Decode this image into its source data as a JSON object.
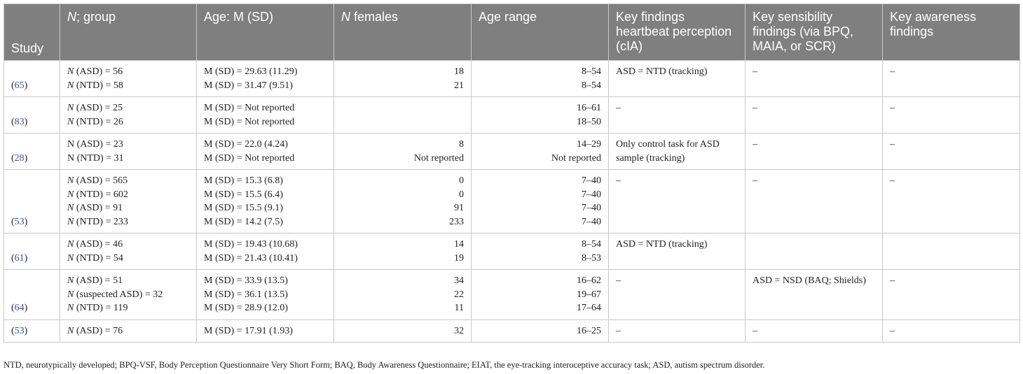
{
  "headers": {
    "study": "Study",
    "n_group": "; group",
    "n_group_italic": "N",
    "age_msd": "Age: M (SD)",
    "n_females": " females",
    "n_females_italic": "N",
    "age_range": "Age range",
    "key_heartbeat": "Key findings heartbeat perception (cIA)",
    "key_sensibility": "Key sensibility findings (via BPQ, MAIA, or SCR)",
    "key_awareness": "Key awareness findings"
  },
  "rows": [
    {
      "study": "65",
      "groups": [
        {
          "n_prefix": "N",
          "n_text": " (ASD) = 56",
          "age": "M (SD) = 29.63 (11.29)",
          "females": "18",
          "range": "8–54"
        },
        {
          "n_prefix": "N",
          "n_text": " (NTD) = 58",
          "age": "M (SD) = 31.47 (9.51)",
          "females": "21",
          "range": "8–54"
        }
      ],
      "heartbeat": "ASD = NTD (tracking)",
      "sensibility": "–",
      "awareness": "–"
    },
    {
      "study": "83",
      "groups": [
        {
          "n_prefix": "N",
          "n_text": " (ASD) = 25",
          "age": "M (SD) = Not reported",
          "females": "",
          "range": "16–61"
        },
        {
          "n_prefix": "N",
          "n_text": " (NTD) = 26",
          "age": "M (SD) = Not reported",
          "females": "",
          "range": "18–50"
        }
      ],
      "heartbeat": "–",
      "sensibility": "–",
      "awareness": "–"
    },
    {
      "study": "28",
      "groups": [
        {
          "n_prefix": "",
          "n_text": "N (ASD) = 23",
          "age": "M (SD) = 22.0 (4.24)",
          "females": "8",
          "range": "14–29"
        },
        {
          "n_prefix": "",
          "n_text": "N (NTD) = 31",
          "age": "M (SD) = Not reported",
          "females": "Not reported",
          "range": "Not reported"
        }
      ],
      "heartbeat": "Only control task for ASD sample (tracking)",
      "sensibility": "–",
      "awareness": "–"
    },
    {
      "study": "53",
      "groups": [
        {
          "n_prefix": "N",
          "n_text": " (ASD) = 565",
          "age": "M (SD) = 15.3 (6.8)",
          "females": "0",
          "range": "7–40"
        },
        {
          "n_prefix": "N",
          "n_text": " (NTD) = 602",
          "age": "M (SD) = 15.5 (6.4)",
          "females": "0",
          "range": "7–40"
        },
        {
          "n_prefix": "N",
          "n_text": " (ASD) = 91",
          "age": "M (SD) = 15.5 (9.1)",
          "females": "91",
          "range": "7–40"
        },
        {
          "n_prefix": "N",
          "n_text": " (NTD) = 233",
          "age": "M (SD) = 14.2 (7.5)",
          "females": "233",
          "range": "7–40"
        }
      ],
      "heartbeat": "–",
      "sensibility": "–",
      "awareness": "–"
    },
    {
      "study": "61",
      "groups": [
        {
          "n_prefix": "N",
          "n_text": " (ASD) = 46",
          "age": "M (SD) = 19.43 (10.68)",
          "females": "14",
          "range": "8–54"
        },
        {
          "n_prefix": "N",
          "n_text": " (NTD) = 54",
          "age": "M (SD) = 21.43 (10.41)",
          "females": "19",
          "range": "8–53"
        }
      ],
      "heartbeat": "ASD = NTD (tracking)",
      "sensibility": "",
      "awareness": ""
    },
    {
      "study": "64",
      "groups": [
        {
          "n_prefix": "N",
          "n_text": " (ASD) = 51",
          "age": "M (SD) = 33.9 (13.5)",
          "females": "34",
          "range": "16–62"
        },
        {
          "n_prefix": "N",
          "n_text": " (suspected ASD) = 32",
          "age": "M (SD) = 36.1 (13.5)",
          "females": "22",
          "range": "19–67"
        },
        {
          "n_prefix": "N",
          "n_text": " (NTD) = 119",
          "age": "M (SD) = 28.9 (12.0)",
          "females": "11",
          "range": "17–64"
        }
      ],
      "heartbeat": "–",
      "sensibility": "ASD = NSD (BAQ; Shields)",
      "awareness": "–"
    },
    {
      "study": "53",
      "groups": [
        {
          "n_prefix": "N",
          "n_text": " (ASD) = 76",
          "age": "M (SD) = 17.91 (1.93)",
          "females": "32",
          "range": "16–25"
        }
      ],
      "heartbeat": "–",
      "sensibility": "–",
      "awareness": "–"
    }
  ],
  "footnote": "NTD, neurotypically developed; BPQ-VSF, Body Perception Questionnaire Very Short Form; BAQ, Body Awareness Questionnaire; EIAT, the eye-tracking interoceptive accuracy task; ASD, autism spectrum disorder."
}
